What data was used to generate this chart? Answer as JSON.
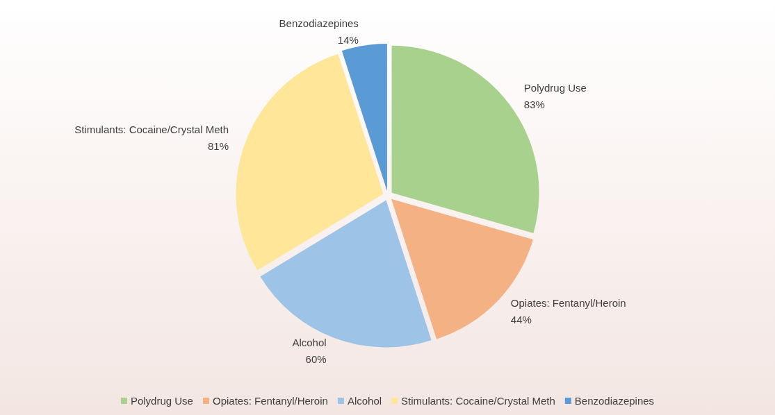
{
  "chart_data": {
    "type": "pie",
    "categories": [
      "Polydrug Use",
      "Opiates: Fentanyl/Heroin",
      "Alcohol",
      "Stimulants: Cocaine/Crystal Meth",
      "Benzodiazepines"
    ],
    "values": [
      83,
      44,
      60,
      81,
      14
    ],
    "value_labels": [
      "83%",
      "44%",
      "60%",
      "81%",
      "14%"
    ],
    "colors": [
      "#a9d18e",
      "#f4b183",
      "#9dc3e6",
      "#ffe699",
      "#5b9bd5"
    ],
    "legend": "bottom"
  }
}
